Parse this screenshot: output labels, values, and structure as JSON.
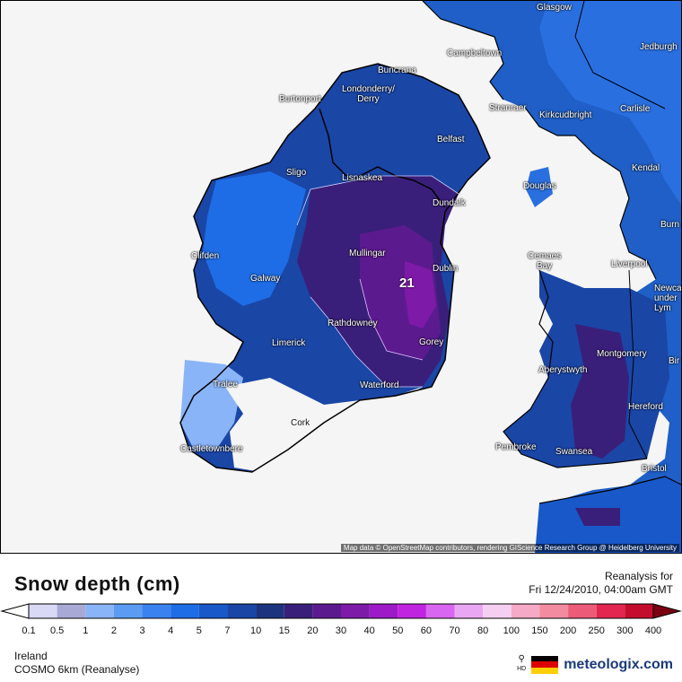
{
  "map": {
    "attribution": "Map data © OpenStreetMap contributors, rendering GIScience Research Group @ Heidelberg University",
    "max_value_label": "21",
    "cities": [
      {
        "name": "Glasgow"
      },
      {
        "name": "Campbeltown"
      },
      {
        "name": "Jedburgh"
      },
      {
        "name": "Buncrana"
      },
      {
        "name": "Londonderry/\nDerry"
      },
      {
        "name": "Burtonport"
      },
      {
        "name": "Stranraer"
      },
      {
        "name": "Kirkcudbright"
      },
      {
        "name": "Carlisle"
      },
      {
        "name": "Belfast"
      },
      {
        "name": "Sligo"
      },
      {
        "name": "Lisnaskea"
      },
      {
        "name": "Kendal"
      },
      {
        "name": "Douglas"
      },
      {
        "name": "Dundalk"
      },
      {
        "name": "Burn"
      },
      {
        "name": "Clifden"
      },
      {
        "name": "Mullingar"
      },
      {
        "name": "Cemaes\nBay"
      },
      {
        "name": "Liverpool"
      },
      {
        "name": "Dublin"
      },
      {
        "name": "Galway"
      },
      {
        "name": "Newca\nunder\nLym"
      },
      {
        "name": "Rathdowney"
      },
      {
        "name": "Limerick"
      },
      {
        "name": "Gorey"
      },
      {
        "name": "Montgomery"
      },
      {
        "name": "Bir"
      },
      {
        "name": "Aberystwyth"
      },
      {
        "name": "Tralee"
      },
      {
        "name": "Waterford"
      },
      {
        "name": "Hereford"
      },
      {
        "name": "Cork"
      },
      {
        "name": "Pembroke"
      },
      {
        "name": "Swansea"
      },
      {
        "name": "Castletownbere"
      },
      {
        "name": "Bristol"
      }
    ]
  },
  "legend": {
    "title": "Snow depth (cm)",
    "reanalysis_line1": "Reanalysis for",
    "reanalysis_line2": "Fri 12/24/2010, 04:00am GMT",
    "ticks": [
      "0.1",
      "0.5",
      "1",
      "2",
      "3",
      "4",
      "5",
      "7",
      "10",
      "15",
      "20",
      "30",
      "40",
      "50",
      "60",
      "70",
      "80",
      "100",
      "150",
      "200",
      "250",
      "300",
      "400"
    ],
    "colors": [
      "#d9d9f5",
      "#a9a9d6",
      "#8ab4f8",
      "#5b9cf2",
      "#3a82ef",
      "#1e6de6",
      "#1858c9",
      "#1a46a6",
      "#1c347f",
      "#3a1f7a",
      "#5c1a8f",
      "#7d1aa8",
      "#9c1ac8",
      "#c024e0",
      "#d966f0",
      "#e9a6f2",
      "#f5cff2",
      "#f5a9c4",
      "#f28aa0",
      "#ec5b78",
      "#e2264f",
      "#c40d2e",
      "#a5001c",
      "#7a0012"
    ],
    "region": "Ireland",
    "model": "COSMO 6km (Reanalyse)",
    "brand": "meteologix.com",
    "hd_label": "HD",
    "flag_colors": [
      "#000000",
      "#dd0000",
      "#ffce00"
    ]
  }
}
